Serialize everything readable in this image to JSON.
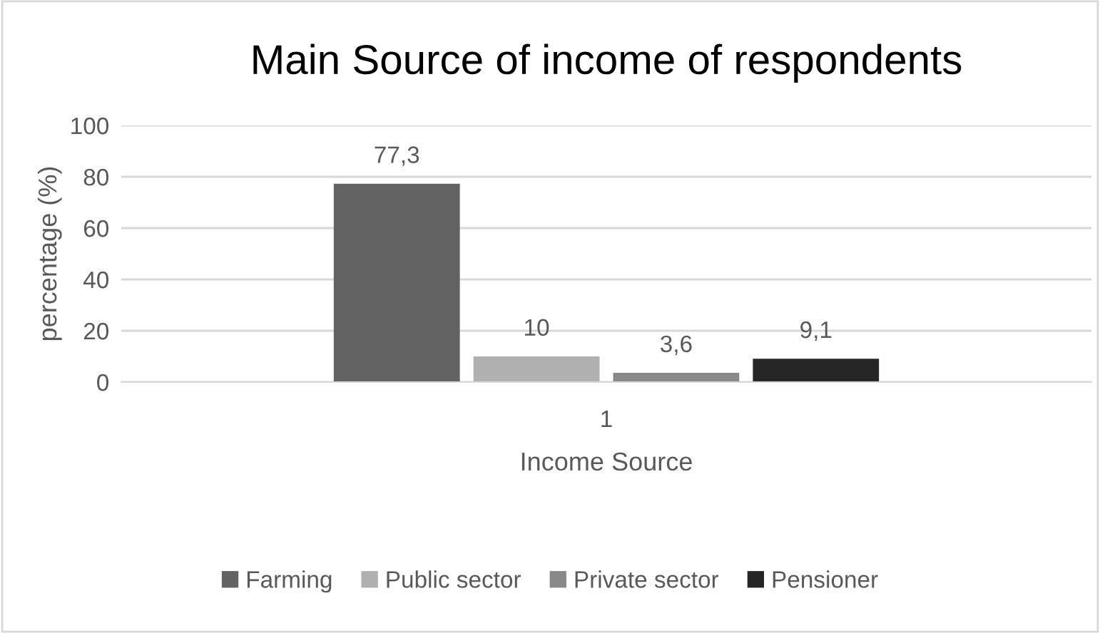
{
  "chart_data": {
    "type": "bar",
    "title": "Main Source of income of respondents",
    "xlabel": "Income Source",
    "ylabel": "percentage (%)",
    "categories": [
      "1"
    ],
    "series": [
      {
        "name": "Farming",
        "color": "#636363",
        "values": [
          77.3
        ],
        "value_labels": [
          "77,3"
        ]
      },
      {
        "name": "Public sector",
        "color": "#b0b0b0",
        "values": [
          10
        ],
        "value_labels": [
          "10"
        ]
      },
      {
        "name": "Private sector",
        "color": "#898989",
        "values": [
          3.6
        ],
        "value_labels": [
          "3,6"
        ]
      },
      {
        "name": "Pensioner",
        "color": "#262626",
        "values": [
          9.1
        ],
        "value_labels": [
          "9,1"
        ]
      }
    ],
    "ylim": [
      0,
      100
    ],
    "yticks": [
      0,
      20,
      40,
      60,
      80,
      100
    ],
    "grid": "y",
    "legend": "bottom"
  }
}
